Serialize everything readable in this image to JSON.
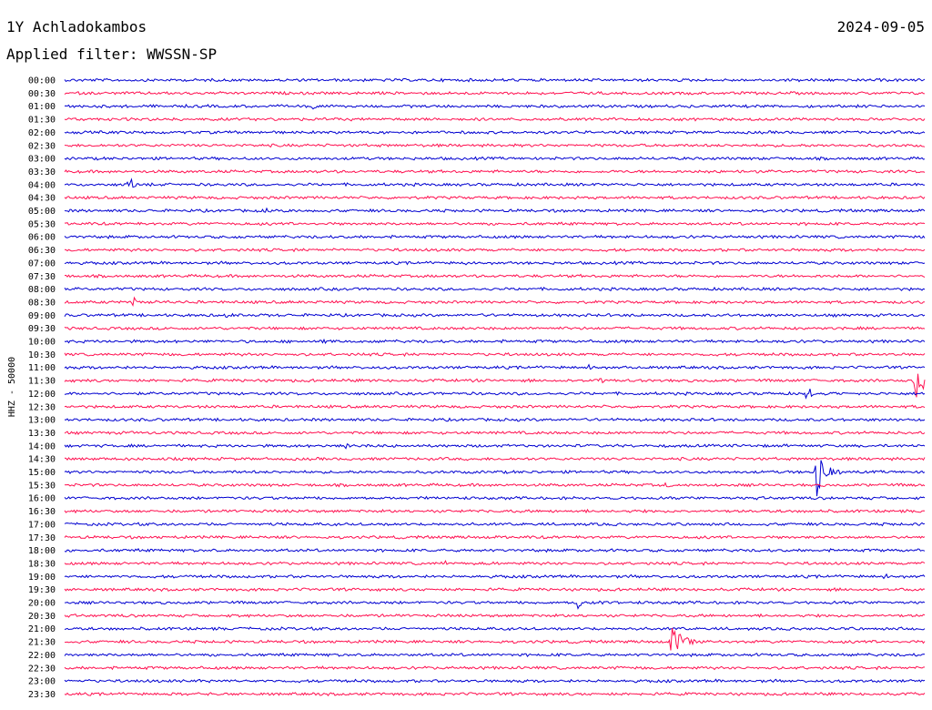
{
  "header": {
    "station": "1Y Achladokambos",
    "date": "2024-09-05",
    "filter": "Applied filter: WWSSN-SP"
  },
  "chart_data": {
    "type": "line",
    "channel_label": "HHZ - 50000",
    "rows": [
      "00:00",
      "00:30",
      "01:00",
      "01:30",
      "02:00",
      "02:30",
      "03:00",
      "03:30",
      "04:00",
      "04:30",
      "05:00",
      "05:30",
      "06:00",
      "06:30",
      "07:00",
      "07:30",
      "08:00",
      "08:30",
      "09:00",
      "09:30",
      "10:00",
      "10:30",
      "11:00",
      "11:30",
      "12:00",
      "12:30",
      "13:00",
      "13:30",
      "14:00",
      "14:30",
      "15:00",
      "15:30",
      "16:00",
      "16:30",
      "17:00",
      "17:30",
      "18:00",
      "18:30",
      "19:00",
      "19:30",
      "20:00",
      "20:30",
      "21:00",
      "21:30",
      "22:00",
      "22:30",
      "23:00",
      "23:30"
    ],
    "x_range_minutes": [
      0,
      30
    ],
    "colors": [
      "#0000d0",
      "#ff1050"
    ],
    "events": [
      {
        "row": "01:00",
        "minute": 8.6,
        "amplitude": 5
      },
      {
        "row": "01:30",
        "minute": 17.7,
        "amplitude": 4
      },
      {
        "row": "03:30",
        "minute": 22.4,
        "amplitude": 4
      },
      {
        "row": "04:00",
        "minute": 2.2,
        "amplitude": 12
      },
      {
        "row": "05:00",
        "minute": 7.0,
        "amplitude": 4
      },
      {
        "row": "07:00",
        "minute": 14.0,
        "amplitude": 4
      },
      {
        "row": "08:30",
        "minute": 2.4,
        "amplitude": 7
      },
      {
        "row": "09:00",
        "minute": 5.6,
        "amplitude": 5
      },
      {
        "row": "09:30",
        "minute": 25.5,
        "amplitude": 6
      },
      {
        "row": "10:00",
        "minute": 9.0,
        "amplitude": 4
      },
      {
        "row": "11:00",
        "minute": 18.3,
        "amplitude": 5
      },
      {
        "row": "11:30",
        "minute": 18.7,
        "amplitude": 10
      },
      {
        "row": "11:30",
        "minute": 29.7,
        "amplitude": 30
      },
      {
        "row": "12:00",
        "minute": 25.9,
        "amplitude": 12
      },
      {
        "row": "14:00",
        "minute": 9.8,
        "amplitude": 7
      },
      {
        "row": "15:00",
        "minute": 26.2,
        "amplitude": 40
      },
      {
        "row": "15:30",
        "minute": 21.0,
        "amplitude": 5
      },
      {
        "row": "18:30",
        "minute": 13.2,
        "amplitude": 6
      },
      {
        "row": "19:00",
        "minute": 28.6,
        "amplitude": 5
      },
      {
        "row": "20:00",
        "minute": 17.9,
        "amplitude": 8
      },
      {
        "row": "21:30",
        "minute": 21.2,
        "amplitude": 30
      },
      {
        "row": "23:00",
        "minute": 4.7,
        "amplitude": 4
      }
    ]
  }
}
